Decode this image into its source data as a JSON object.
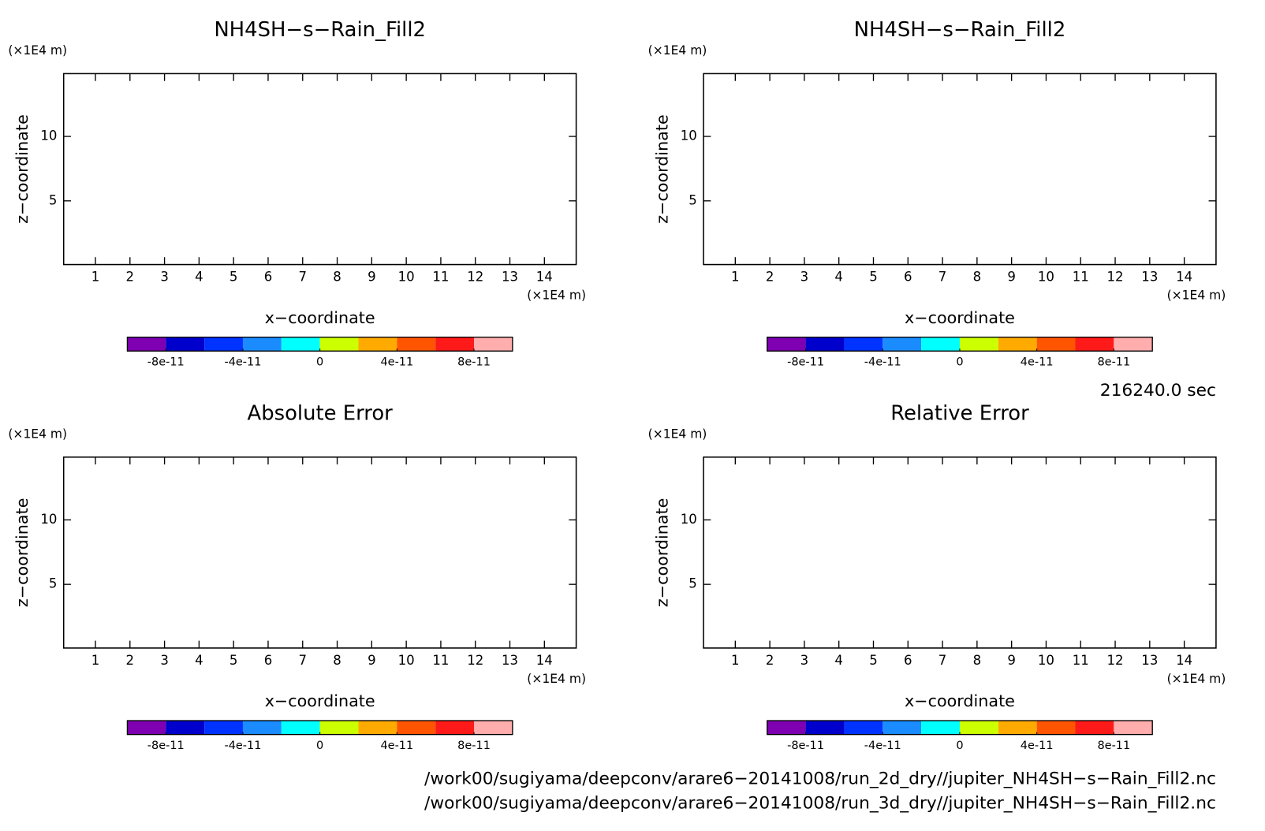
{
  "chart_data": [
    {
      "type": "contour",
      "title": "NH4SH−s−Rain_Fill2",
      "x_label": "x−coordinate",
      "y_label": "z−coordinate",
      "x_unit": "(×1E4 m)",
      "y_unit": "(×1E4 m)",
      "xlim": [
        0.08,
        14.92
      ],
      "ylim": [
        0.06,
        14.87
      ],
      "xticks": [
        1,
        2,
        3,
        4,
        5,
        6,
        7,
        8,
        9,
        10,
        11,
        12,
        13,
        14
      ],
      "yticks": [
        5,
        10
      ],
      "colorbar": {
        "colors": [
          "#7f00b2",
          "#0000cc",
          "#0033ff",
          "#1a8cff",
          "#00ffff",
          "#ccff00",
          "#ffaa00",
          "#ff5500",
          "#ff1a1a",
          "#ffadad"
        ],
        "lim": [
          -1e-10,
          1e-10
        ],
        "ticks": [
          -8e-11,
          -4e-11,
          0,
          4e-11,
          8e-11
        ]
      }
    },
    {
      "type": "contour",
      "title": "NH4SH−s−Rain_Fill2",
      "x_label": "x−coordinate",
      "y_label": "z−coordinate",
      "x_unit": "(×1E4 m)",
      "y_unit": "(×1E4 m)",
      "xlim": [
        0.08,
        14.92
      ],
      "ylim": [
        0.06,
        14.87
      ],
      "xticks": [
        1,
        2,
        3,
        4,
        5,
        6,
        7,
        8,
        9,
        10,
        11,
        12,
        13,
        14
      ],
      "yticks": [
        5,
        10
      ],
      "colorbar": {
        "colors": [
          "#7f00b2",
          "#0000cc",
          "#0033ff",
          "#1a8cff",
          "#00ffff",
          "#ccff00",
          "#ffaa00",
          "#ff5500",
          "#ff1a1a",
          "#ffadad"
        ],
        "lim": [
          -1e-10,
          1e-10
        ],
        "ticks": [
          -8e-11,
          -4e-11,
          0,
          4e-11,
          8e-11
        ]
      }
    },
    {
      "type": "contour",
      "title": "Absolute Error",
      "x_label": "x−coordinate",
      "y_label": "z−coordinate",
      "x_unit": "(×1E4 m)",
      "y_unit": "(×1E4 m)",
      "xlim": [
        0.08,
        14.92
      ],
      "ylim": [
        0.06,
        14.87
      ],
      "xticks": [
        1,
        2,
        3,
        4,
        5,
        6,
        7,
        8,
        9,
        10,
        11,
        12,
        13,
        14
      ],
      "yticks": [
        5,
        10
      ],
      "colorbar": {
        "colors": [
          "#7f00b2",
          "#0000cc",
          "#0033ff",
          "#1a8cff",
          "#00ffff",
          "#ccff00",
          "#ffaa00",
          "#ff5500",
          "#ff1a1a",
          "#ffadad"
        ],
        "lim": [
          -1e-10,
          1e-10
        ],
        "ticks": [
          -8e-11,
          -4e-11,
          0,
          4e-11,
          8e-11
        ]
      }
    },
    {
      "type": "contour",
      "title": "Relative Error",
      "x_label": "x−coordinate",
      "y_label": "z−coordinate",
      "x_unit": "(×1E4 m)",
      "y_unit": "(×1E4 m)",
      "xlim": [
        0.08,
        14.92
      ],
      "ylim": [
        0.06,
        14.87
      ],
      "xticks": [
        1,
        2,
        3,
        4,
        5,
        6,
        7,
        8,
        9,
        10,
        11,
        12,
        13,
        14
      ],
      "yticks": [
        5,
        10
      ],
      "colorbar": {
        "colors": [
          "#7f00b2",
          "#0000cc",
          "#0033ff",
          "#1a8cff",
          "#00ffff",
          "#ccff00",
          "#ffaa00",
          "#ff5500",
          "#ff1a1a",
          "#ffadad"
        ],
        "lim": [
          -1e-10,
          1e-10
        ],
        "ticks": [
          -8e-11,
          -4e-11,
          0,
          4e-11,
          8e-11
        ]
      }
    }
  ],
  "time_label": "216240.0 sec",
  "files": [
    "/work00/sugiyama/deepconv/arare6−20141008/run_2d_dry//jupiter_NH4SH−s−Rain_Fill2.nc",
    "/work00/sugiyama/deepconv/arare6−20141008/run_3d_dry//jupiter_NH4SH−s−Rain_Fill2.nc"
  ]
}
